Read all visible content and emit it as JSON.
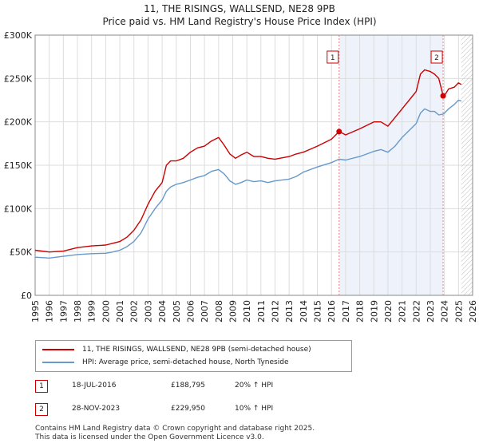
{
  "title_line1": "11, THE RISINGS, WALLSEND, NE28 9PB",
  "title_line2": "Price paid vs. HM Land Registry's House Price Index (HPI)",
  "colors": {
    "property": "#cc0000",
    "hpi": "#6699cc",
    "shade": "#eef2fb",
    "grid": "#dddddd"
  },
  "chart_data": {
    "type": "line",
    "title": "Price paid vs. HM Land Registry's House Price Index (HPI)",
    "ylim": [
      0,
      300000
    ],
    "xlim": [
      1995,
      2026
    ],
    "y_ticks": [
      0,
      50000,
      100000,
      150000,
      200000,
      250000,
      300000
    ],
    "y_tick_labels": [
      "£0",
      "£50K",
      "£100K",
      "£150K",
      "£200K",
      "£250K",
      "£300K"
    ],
    "x_ticks": [
      1995,
      1996,
      1997,
      1998,
      1999,
      2000,
      2001,
      2002,
      2003,
      2004,
      2005,
      2006,
      2007,
      2008,
      2009,
      2010,
      2011,
      2012,
      2013,
      2014,
      2015,
      2016,
      2017,
      2018,
      2019,
      2020,
      2021,
      2022,
      2023,
      2024,
      2025,
      2026
    ],
    "x_tick_labels": [
      "1995",
      "1996",
      "1997",
      "1998",
      "1999",
      "2000",
      "2001",
      "2002",
      "2003",
      "2004",
      "2005",
      "2006",
      "2007",
      "2008",
      "2009",
      "2010",
      "2011",
      "2012",
      "2013",
      "2014",
      "2015",
      "2016",
      "2017",
      "2018",
      "2019",
      "2020",
      "2021",
      "2022",
      "2023",
      "2024",
      "2025",
      "2026"
    ],
    "shaded_range": [
      2016.54,
      2023.91
    ],
    "forecast_start": 2025.2,
    "series": [
      {
        "name": "11, THE RISINGS, WALLSEND, NE28 9PB (semi-detached house)",
        "x": [
          1995,
          1996,
          1997,
          1998,
          1999,
          2000,
          2000.5,
          2001,
          2001.5,
          2002,
          2002.5,
          2003,
          2003.5,
          2004,
          2004.3,
          2004.6,
          2005,
          2005.5,
          2006,
          2006.5,
          2007,
          2007.5,
          2008,
          2008.4,
          2008.8,
          2009.2,
          2009.6,
          2010,
          2010.5,
          2011,
          2011.5,
          2012,
          2013,
          2013.5,
          2014,
          2015,
          2016,
          2016.54,
          2017,
          2018,
          2019,
          2019.5,
          2020,
          2020.5,
          2021,
          2021.5,
          2022,
          2022.3,
          2022.6,
          2023,
          2023.3,
          2023.6,
          2023.91,
          2024,
          2024.3,
          2024.7,
          2025,
          2025.2
        ],
        "values": [
          52000,
          50000,
          51000,
          55000,
          57000,
          58000,
          60000,
          62000,
          67000,
          75000,
          87000,
          105000,
          120000,
          130000,
          150000,
          155000,
          155000,
          158000,
          165000,
          170000,
          172000,
          178000,
          182000,
          173000,
          163000,
          158000,
          162000,
          165000,
          160000,
          160000,
          158000,
          157000,
          160000,
          163000,
          165000,
          172000,
          180000,
          188795,
          185000,
          192000,
          200000,
          200000,
          195000,
          205000,
          215000,
          225000,
          235000,
          255000,
          260000,
          258000,
          255000,
          250000,
          229950,
          230000,
          238000,
          240000,
          245000,
          243000
        ]
      },
      {
        "name": "HPI: Average price, semi-detached house, North Tyneside",
        "x": [
          1995,
          1996,
          1997,
          1998,
          1999,
          2000,
          2000.5,
          2001,
          2001.5,
          2002,
          2002.5,
          2003,
          2003.5,
          2004,
          2004.3,
          2004.6,
          2005,
          2005.5,
          2006,
          2006.5,
          2007,
          2007.5,
          2008,
          2008.4,
          2008.8,
          2009.2,
          2009.6,
          2010,
          2010.5,
          2011,
          2011.5,
          2012,
          2013,
          2013.5,
          2014,
          2015,
          2016,
          2016.54,
          2017,
          2018,
          2019,
          2019.5,
          2020,
          2020.5,
          2021,
          2021.5,
          2022,
          2022.3,
          2022.6,
          2023,
          2023.3,
          2023.6,
          2023.91,
          2024,
          2024.3,
          2024.7,
          2025,
          2025.2
        ],
        "values": [
          44000,
          43000,
          45000,
          47000,
          48000,
          48500,
          50000,
          52000,
          56000,
          62000,
          72000,
          88000,
          100000,
          110000,
          120000,
          125000,
          128000,
          130000,
          133000,
          136000,
          138000,
          143000,
          145000,
          140000,
          132000,
          128000,
          130000,
          133000,
          131000,
          132000,
          130000,
          132000,
          134000,
          137000,
          142000,
          148000,
          153000,
          157000,
          156000,
          160000,
          166000,
          168000,
          165000,
          172000,
          182000,
          190000,
          198000,
          210000,
          215000,
          212000,
          212000,
          208000,
          209000,
          210000,
          215000,
          220000,
          225000,
          224000
        ]
      }
    ],
    "markers": [
      {
        "label": "1",
        "x": 2016.54,
        "y": 188795
      },
      {
        "label": "2",
        "x": 2023.91,
        "y": 229950
      }
    ]
  },
  "legend": {
    "property_label": "11, THE RISINGS, WALLSEND, NE28 9PB (semi-detached house)",
    "hpi_label": "HPI: Average price, semi-detached house, North Tyneside"
  },
  "sales": [
    {
      "num": "1",
      "date": "18-JUL-2016",
      "price": "£188,795",
      "hpi": "20% ↑ HPI"
    },
    {
      "num": "2",
      "date": "28-NOV-2023",
      "price": "£229,950",
      "hpi": "10% ↑ HPI"
    }
  ],
  "footer_line1": "Contains HM Land Registry data © Crown copyright and database right 2025.",
  "footer_line2": "This data is licensed under the Open Government Licence v3.0."
}
